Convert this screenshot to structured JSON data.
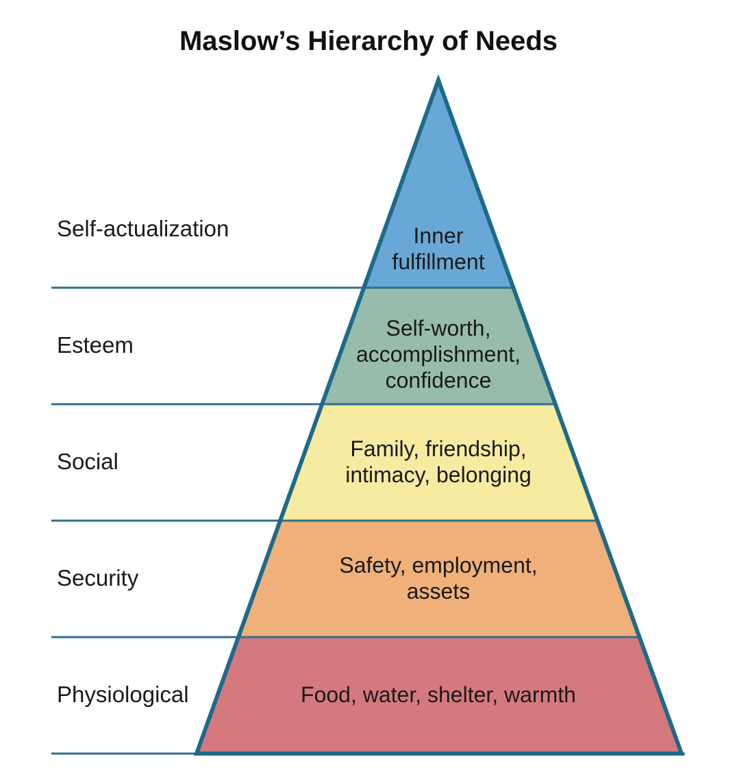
{
  "title": "Maslow’s Hierarchy of Needs",
  "colors": {
    "outline": "#1f6a8a",
    "divider": "#2e6f8e"
  },
  "levels": [
    {
      "label": "Self-actualization",
      "lines": [
        "Inner",
        "fulfillment"
      ],
      "color": "#69a8d6"
    },
    {
      "label": "Esteem",
      "lines": [
        "Self-worth,",
        "accomplishment,",
        "confidence"
      ],
      "color": "#97bcab"
    },
    {
      "label": "Social",
      "lines": [
        "Family, friendship,",
        "intimacy, belonging"
      ],
      "color": "#f6eba0"
    },
    {
      "label": "Security",
      "lines": [
        "Safety, employment,",
        "assets"
      ],
      "color": "#efb079"
    },
    {
      "label": "Physiological",
      "lines": [
        "Food, water, shelter, warmth"
      ],
      "color": "#d5797f"
    }
  ]
}
